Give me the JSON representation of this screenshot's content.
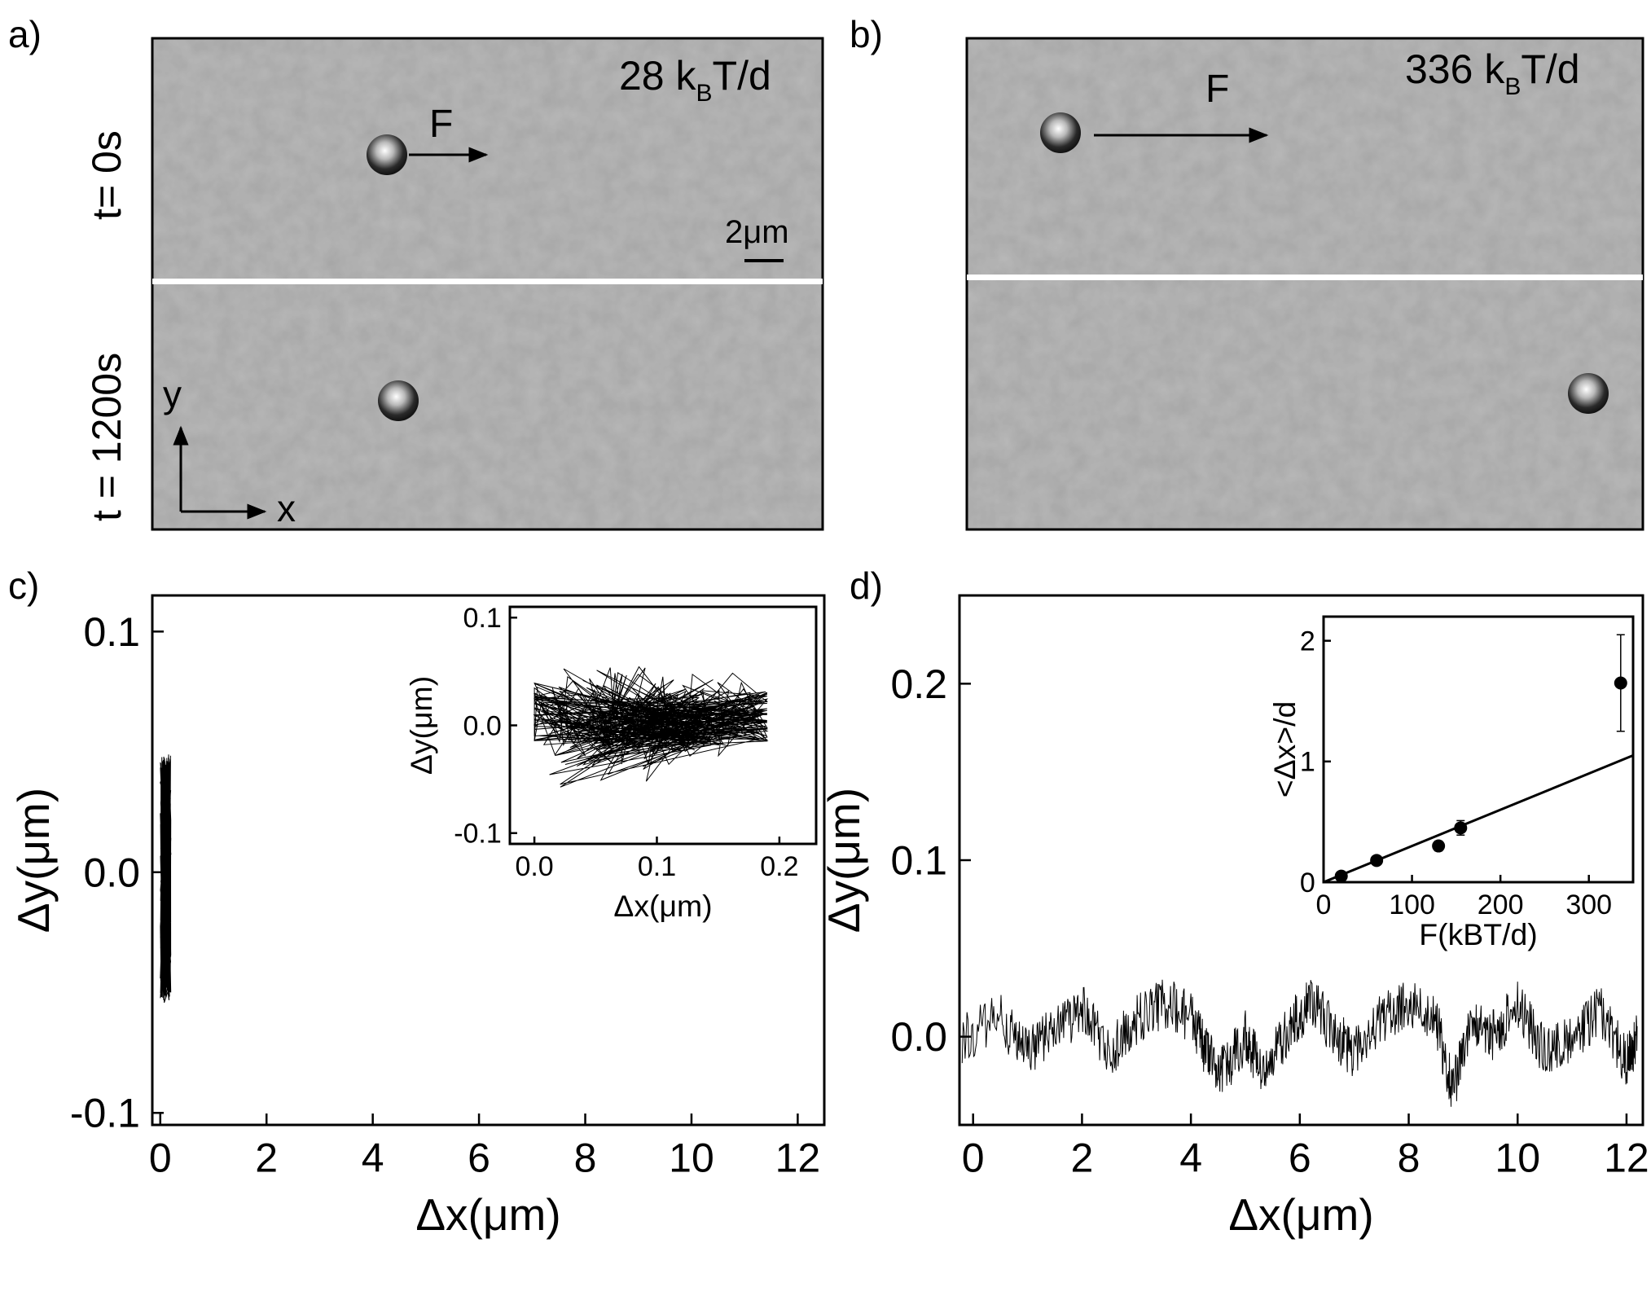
{
  "panels": {
    "a": {
      "label": "a)",
      "force": "28 k",
      "force_sub": "B",
      "force_unit": "T/d",
      "arrow_label": "F",
      "scalebar": "2μm",
      "time_top": "t= 0s",
      "time_bottom": "t = 1200s",
      "axis_x": "x",
      "axis_y": "y"
    },
    "b": {
      "label": "b)",
      "force": "336 k",
      "force_sub": "B",
      "force_unit": "T/d",
      "arrow_label": "F"
    },
    "c": {
      "label": "c)"
    },
    "d": {
      "label": "d)"
    }
  },
  "chart_data": [
    {
      "id": "c-main",
      "type": "line",
      "xlabel": "Δx(μm)",
      "ylabel": "Δy(μm)",
      "xlim": [
        -0.15,
        12.5
      ],
      "ylim": [
        -0.105,
        0.115
      ],
      "xticks": [
        0,
        2,
        4,
        6,
        8,
        10,
        12
      ],
      "xtick_labels": [
        "0",
        "2",
        "4",
        "6",
        "8",
        "10",
        "12"
      ],
      "yticks": [
        -0.1,
        0.0,
        0.1
      ],
      "ytick_labels": [
        "-0.1",
        "0.0",
        "0.1"
      ],
      "series": [
        {
          "x_range": [
            0.0,
            0.2
          ],
          "y_range": [
            -0.06,
            0.055
          ],
          "points": [
            [
              0.0,
              0.01
            ],
            [
              0.02,
              0.03
            ],
            [
              0.05,
              -0.01
            ],
            [
              0.03,
              0.04
            ],
            [
              0.08,
              0.0
            ],
            [
              0.06,
              0.05
            ],
            [
              0.1,
              -0.02
            ],
            [
              0.04,
              0.02
            ],
            [
              0.12,
              0.01
            ],
            [
              0.07,
              -0.03
            ],
            [
              0.15,
              0.02
            ],
            [
              0.09,
              0.0
            ],
            [
              0.18,
              0.015
            ],
            [
              0.11,
              -0.01
            ],
            [
              0.14,
              0.03
            ],
            [
              0.05,
              -0.06
            ],
            [
              0.16,
              0.0
            ],
            [
              0.13,
              0.04
            ],
            [
              0.19,
              0.01
            ]
          ]
        }
      ]
    },
    {
      "id": "c-inset",
      "type": "line",
      "xlabel": "Δx(μm)",
      "ylabel": "Δy(μm)",
      "xlim": [
        -0.02,
        0.23
      ],
      "ylim": [
        -0.11,
        0.11
      ],
      "xticks": [
        0.0,
        0.1,
        0.2
      ],
      "xtick_labels": [
        "0.0",
        "0.1",
        "0.2"
      ],
      "yticks": [
        -0.1,
        0.0,
        0.1
      ],
      "ytick_labels": [
        "-0.1",
        "0.0",
        "0.1"
      ],
      "series": [
        {
          "points": [
            [
              0.0,
              0.01
            ],
            [
              0.02,
              0.03
            ],
            [
              0.05,
              -0.01
            ],
            [
              0.03,
              0.04
            ],
            [
              0.08,
              0.0
            ],
            [
              0.06,
              0.05
            ],
            [
              0.1,
              -0.02
            ],
            [
              0.04,
              0.02
            ],
            [
              0.12,
              0.01
            ],
            [
              0.07,
              -0.03
            ],
            [
              0.15,
              0.02
            ],
            [
              0.09,
              0.0
            ],
            [
              0.18,
              0.015
            ],
            [
              0.11,
              -0.01
            ],
            [
              0.14,
              0.03
            ],
            [
              0.05,
              -0.06
            ],
            [
              0.16,
              0.0
            ],
            [
              0.13,
              0.04
            ],
            [
              0.19,
              0.01
            ]
          ]
        }
      ]
    },
    {
      "id": "d-main",
      "type": "line",
      "xlabel": "Δx(μm)",
      "ylabel": "Δy(μm)",
      "xlim": [
        -0.25,
        12.3
      ],
      "ylim": [
        -0.05,
        0.25
      ],
      "xticks": [
        0,
        2,
        4,
        6,
        8,
        10,
        12
      ],
      "xtick_labels": [
        "0",
        "2",
        "4",
        "6",
        "8",
        "10",
        "12"
      ],
      "yticks": [
        0.0,
        0.1,
        0.2
      ],
      "ytick_labels": [
        "0.0",
        "0.1",
        "0.2"
      ],
      "series": [
        {
          "points": [
            [
              -0.2,
              0.0
            ],
            [
              0.5,
              0.01
            ],
            [
              1.0,
              -0.01
            ],
            [
              1.5,
              0.005
            ],
            [
              2.0,
              0.015
            ],
            [
              2.5,
              -0.01
            ],
            [
              3.0,
              0.01
            ],
            [
              3.5,
              0.02
            ],
            [
              4.0,
              0.01
            ],
            [
              4.3,
              -0.01
            ],
            [
              4.6,
              -0.02
            ],
            [
              5.0,
              0.0
            ],
            [
              5.3,
              -0.02
            ],
            [
              5.8,
              0.005
            ],
            [
              6.2,
              0.02
            ],
            [
              6.7,
              0.0
            ],
            [
              7.0,
              -0.01
            ],
            [
              7.5,
              0.01
            ],
            [
              8.0,
              0.02
            ],
            [
              8.5,
              0.01
            ],
            [
              8.8,
              -0.03
            ],
            [
              9.2,
              0.01
            ],
            [
              9.6,
              0.0
            ],
            [
              10.0,
              0.02
            ],
            [
              10.5,
              -0.01
            ],
            [
              11.0,
              0.0
            ],
            [
              11.5,
              0.015
            ],
            [
              12.0,
              -0.015
            ],
            [
              12.2,
              0.0
            ]
          ]
        }
      ]
    },
    {
      "id": "d-inset",
      "type": "scatter",
      "xlabel": "F(kBT/d)",
      "ylabel": "<Δx>/d",
      "xlim": [
        0,
        350
      ],
      "ylim": [
        0,
        2.2
      ],
      "xticks": [
        0,
        100,
        200,
        300
      ],
      "xtick_labels": [
        "0",
        "100",
        "200",
        "300"
      ],
      "yticks": [
        0,
        1,
        2
      ],
      "ytick_labels": [
        "0",
        "1",
        "2"
      ],
      "series": [
        {
          "x": [
            20,
            60,
            130,
            155,
            336
          ],
          "y": [
            0.05,
            0.18,
            0.3,
            0.45,
            1.65
          ],
          "yerr": [
            0.02,
            0.03,
            0.04,
            0.06,
            0.4
          ]
        }
      ],
      "fit_line": {
        "x": [
          0,
          350
        ],
        "y": [
          0.0,
          1.05
        ]
      }
    }
  ]
}
